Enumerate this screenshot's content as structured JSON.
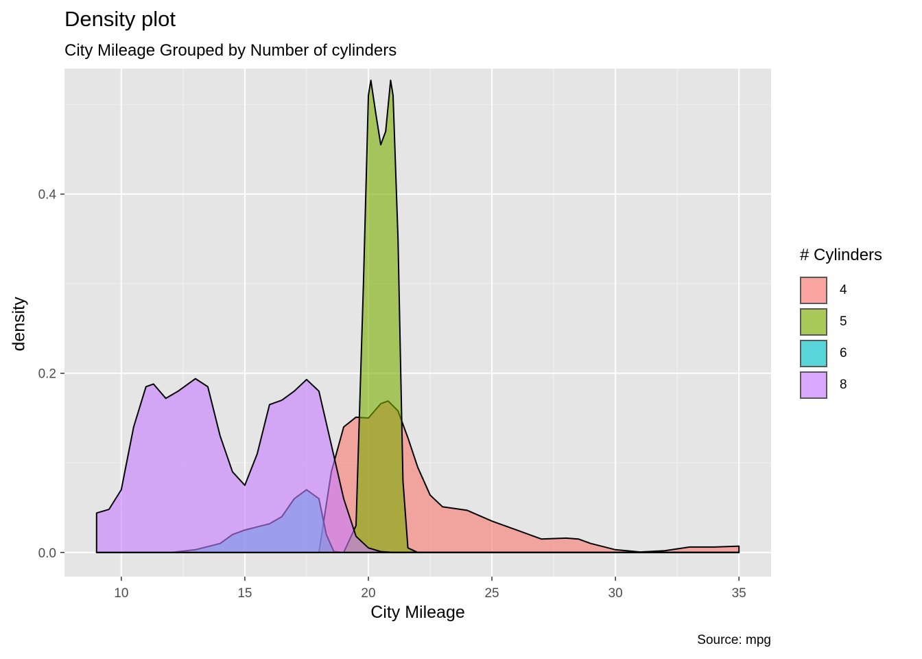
{
  "chart_data": {
    "type": "area",
    "title": "Density plot",
    "subtitle": "City Mileage Grouped by Number of cylinders",
    "caption": "Source: mpg",
    "xlabel": "City Mileage",
    "ylabel": "density",
    "xlim": [
      7.7,
      36.3
    ],
    "ylim": [
      -0.027,
      0.54
    ],
    "x_ticks": [
      10,
      15,
      20,
      25,
      30,
      35
    ],
    "y_ticks": [
      0.0,
      0.2,
      0.4
    ],
    "y_tick_labels": [
      "0.0",
      "0.2",
      "0.4"
    ],
    "grid": true,
    "legend": {
      "title": "# Cylinders",
      "position": "right"
    },
    "series": [
      {
        "name": "4",
        "color": "#F8766D",
        "points": [
          [
            9,
            0
          ],
          [
            18,
            0
          ],
          [
            18.5,
            0.09
          ],
          [
            19,
            0.14
          ],
          [
            19.5,
            0.151
          ],
          [
            20,
            0.15
          ],
          [
            20.5,
            0.166
          ],
          [
            20.8,
            0.169
          ],
          [
            21.2,
            0.158
          ],
          [
            21.6,
            0.128
          ],
          [
            22,
            0.095
          ],
          [
            22.5,
            0.064
          ],
          [
            23,
            0.051
          ],
          [
            24,
            0.047
          ],
          [
            25,
            0.035
          ],
          [
            26,
            0.025
          ],
          [
            27,
            0.015
          ],
          [
            28,
            0.016
          ],
          [
            28.5,
            0.015
          ],
          [
            29,
            0.01
          ],
          [
            30,
            0.003
          ],
          [
            31,
            0.0005
          ],
          [
            32,
            0.002
          ],
          [
            33,
            0.006
          ],
          [
            34,
            0.006
          ],
          [
            35,
            0.007
          ],
          [
            35,
            0
          ]
        ]
      },
      {
        "name": "5",
        "color": "#7CAE00",
        "points": [
          [
            9,
            0
          ],
          [
            19,
            0
          ],
          [
            19.5,
            0.03
          ],
          [
            19.8,
            0.3
          ],
          [
            20,
            0.51
          ],
          [
            20.1,
            0.527
          ],
          [
            20.3,
            0.49
          ],
          [
            20.5,
            0.455
          ],
          [
            20.7,
            0.47
          ],
          [
            20.9,
            0.527
          ],
          [
            21.0,
            0.51
          ],
          [
            21.2,
            0.35
          ],
          [
            21.4,
            0.08
          ],
          [
            21.6,
            0.005
          ],
          [
            22,
            0
          ],
          [
            35,
            0
          ]
        ]
      },
      {
        "name": "6",
        "color": "#00BFC4",
        "points": [
          [
            9,
            0
          ],
          [
            12,
            0.0
          ],
          [
            13,
            0.003
          ],
          [
            14,
            0.01
          ],
          [
            14.5,
            0.02
          ],
          [
            15,
            0.025
          ],
          [
            16,
            0.032
          ],
          [
            16.5,
            0.04
          ],
          [
            17,
            0.06
          ],
          [
            17.5,
            0.07
          ],
          [
            18,
            0.06
          ],
          [
            18.3,
            0.02
          ],
          [
            18.6,
            0.001
          ],
          [
            19,
            0
          ],
          [
            35,
            0
          ]
        ]
      },
      {
        "name": "8",
        "color": "#C77CFF",
        "points": [
          [
            9,
            0.044
          ],
          [
            9.5,
            0.048
          ],
          [
            10,
            0.07
          ],
          [
            10.5,
            0.14
          ],
          [
            11,
            0.185
          ],
          [
            11.3,
            0.188
          ],
          [
            11.8,
            0.172
          ],
          [
            12.3,
            0.18
          ],
          [
            13,
            0.194
          ],
          [
            13.5,
            0.185
          ],
          [
            14,
            0.13
          ],
          [
            14.5,
            0.09
          ],
          [
            15,
            0.075
          ],
          [
            15.5,
            0.11
          ],
          [
            16,
            0.165
          ],
          [
            16.5,
            0.17
          ],
          [
            17,
            0.18
          ],
          [
            17.5,
            0.193
          ],
          [
            18,
            0.18
          ],
          [
            18.5,
            0.12
          ],
          [
            19,
            0.06
          ],
          [
            19.5,
            0.018
          ],
          [
            20,
            0.005
          ],
          [
            20.5,
            0.001
          ],
          [
            21,
            0
          ],
          [
            35,
            0
          ],
          [
            35,
            0
          ],
          [
            9,
            0
          ]
        ]
      }
    ]
  },
  "colors": {
    "panel_background": "#E5E5E5",
    "grid_major": "#FFFFFF",
    "grid_minor": "#F2F2F2",
    "outline": "#000000"
  }
}
